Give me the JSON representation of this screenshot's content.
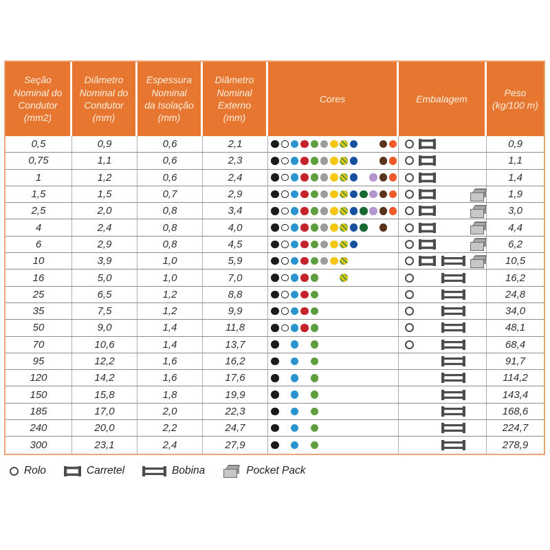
{
  "columns": [
    {
      "id": "secao",
      "label": "Seção\nNominal do\nCondutor\n(mm2)"
    },
    {
      "id": "diam_condutor",
      "label": "Diâmetro\nNominal do\nCondutor\n(mm)"
    },
    {
      "id": "espessura",
      "label": "Espessura\nNominal\nda Isolação\n(mm)"
    },
    {
      "id": "diam_externo",
      "label": "Diâmetro\nNominal\nExterno\n(mm)"
    },
    {
      "id": "cores",
      "label": "Cores"
    },
    {
      "id": "embalagem",
      "label": "Embalagem"
    },
    {
      "id": "peso",
      "label": "Peso\n(kg/100 m)"
    }
  ],
  "palette": [
    {
      "name": "preto",
      "hex": "#1B1B1B",
      "style": "solid"
    },
    {
      "name": "branco",
      "hex": "#FFFFFF",
      "style": "outline"
    },
    {
      "name": "azul-claro",
      "hex": "#2B93CE",
      "style": "solid"
    },
    {
      "name": "vermelho",
      "hex": "#C4232B",
      "style": "solid"
    },
    {
      "name": "verde",
      "hex": "#5E9E3E",
      "style": "solid"
    },
    {
      "name": "cinza",
      "hex": "#9C9C9C",
      "style": "solid"
    },
    {
      "name": "amarelo",
      "hex": "#F5C713",
      "style": "solid"
    },
    {
      "name": "verde-amarelo",
      "hex": "#5E9E3E/#F5C713",
      "style": "striped"
    },
    {
      "name": "azul-escuro",
      "hex": "#16509F",
      "style": "solid"
    },
    {
      "name": "verde-escuro",
      "hex": "#186A34",
      "style": "solid"
    },
    {
      "name": "violeta",
      "hex": "#B495D0",
      "style": "solid"
    },
    {
      "name": "marrom",
      "hex": "#59331B",
      "style": "solid"
    },
    {
      "name": "laranja",
      "hex": "#F05A28",
      "style": "solid"
    }
  ],
  "rows": [
    {
      "secao": "0,5",
      "diam_condutor": "0,9",
      "espessura": "0,6",
      "diam_externo": "2,1",
      "cores": [
        1,
        2,
        3,
        4,
        5,
        6,
        7,
        8,
        9,
        12,
        13
      ],
      "embalagem": [
        "rolo",
        "carretel"
      ],
      "peso": "0,9"
    },
    {
      "secao": "0,75",
      "diam_condutor": "1,1",
      "espessura": "0,6",
      "diam_externo": "2,3",
      "cores": [
        1,
        2,
        3,
        4,
        5,
        6,
        7,
        8,
        9,
        12,
        13
      ],
      "embalagem": [
        "rolo",
        "carretel"
      ],
      "peso": "1,1"
    },
    {
      "secao": "1",
      "diam_condutor": "1,2",
      "espessura": "0,6",
      "diam_externo": "2,4",
      "cores": [
        1,
        2,
        3,
        4,
        5,
        6,
        7,
        8,
        9,
        11,
        12,
        13
      ],
      "embalagem": [
        "rolo",
        "carretel"
      ],
      "peso": "1,4"
    },
    {
      "secao": "1,5",
      "diam_condutor": "1,5",
      "espessura": "0,7",
      "diam_externo": "2,9",
      "cores": [
        1,
        2,
        3,
        4,
        5,
        6,
        7,
        8,
        9,
        10,
        11,
        12,
        13
      ],
      "embalagem": [
        "rolo",
        "carretel",
        "pocket"
      ],
      "peso": "1,9"
    },
    {
      "secao": "2,5",
      "diam_condutor": "2,0",
      "espessura": "0,8",
      "diam_externo": "3,4",
      "cores": [
        1,
        2,
        3,
        4,
        5,
        6,
        7,
        8,
        9,
        10,
        11,
        12,
        13
      ],
      "embalagem": [
        "rolo",
        "carretel",
        "pocket"
      ],
      "peso": "3,0"
    },
    {
      "secao": "4",
      "diam_condutor": "2,4",
      "espessura": "0,8",
      "diam_externo": "4,0",
      "cores": [
        1,
        2,
        3,
        4,
        5,
        6,
        7,
        8,
        9,
        10,
        12
      ],
      "embalagem": [
        "rolo",
        "carretel",
        "pocket"
      ],
      "peso": "4,4"
    },
    {
      "secao": "6",
      "diam_condutor": "2,9",
      "espessura": "0,8",
      "diam_externo": "4,5",
      "cores": [
        1,
        2,
        3,
        4,
        5,
        6,
        7,
        8,
        9
      ],
      "embalagem": [
        "rolo",
        "carretel",
        "pocket"
      ],
      "peso": "6,2"
    },
    {
      "secao": "10",
      "diam_condutor": "3,9",
      "espessura": "1,0",
      "diam_externo": "5,9",
      "cores": [
        1,
        2,
        3,
        4,
        5,
        6,
        7,
        8
      ],
      "embalagem": [
        "rolo",
        "carretel",
        "bobina",
        "pocket"
      ],
      "peso": "10,5"
    },
    {
      "secao": "16",
      "diam_condutor": "5,0",
      "espessura": "1,0",
      "diam_externo": "7,0",
      "cores": [
        1,
        2,
        3,
        4,
        5,
        8
      ],
      "embalagem": [
        "rolo",
        "bobina"
      ],
      "peso": "16,2"
    },
    {
      "secao": "25",
      "diam_condutor": "6,5",
      "espessura": "1,2",
      "diam_externo": "8,8",
      "cores": [
        1,
        2,
        3,
        4,
        5
      ],
      "embalagem": [
        "rolo",
        "bobina"
      ],
      "peso": "24,8"
    },
    {
      "secao": "35",
      "diam_condutor": "7,5",
      "espessura": "1,2",
      "diam_externo": "9,9",
      "cores": [
        1,
        2,
        3,
        4,
        5
      ],
      "embalagem": [
        "rolo",
        "bobina"
      ],
      "peso": "34,0"
    },
    {
      "secao": "50",
      "diam_condutor": "9,0",
      "espessura": "1,4",
      "diam_externo": "11,8",
      "cores": [
        1,
        2,
        3,
        4,
        5
      ],
      "embalagem": [
        "rolo",
        "bobina"
      ],
      "peso": "48,1"
    },
    {
      "secao": "70",
      "diam_condutor": "10,6",
      "espessura": "1,4",
      "diam_externo": "13,7",
      "cores": [
        1,
        3,
        5
      ],
      "embalagem": [
        "rolo",
        "bobina"
      ],
      "peso": "68,4"
    },
    {
      "secao": "95",
      "diam_condutor": "12,2",
      "espessura": "1,6",
      "diam_externo": "16,2",
      "cores": [
        1,
        3,
        5
      ],
      "embalagem": [
        "bobina"
      ],
      "peso": "91,7"
    },
    {
      "secao": "120",
      "diam_condutor": "14,2",
      "espessura": "1,6",
      "diam_externo": "17,6",
      "cores": [
        1,
        3,
        5
      ],
      "embalagem": [
        "bobina"
      ],
      "peso": "114,2"
    },
    {
      "secao": "150",
      "diam_condutor": "15,8",
      "espessura": "1,8",
      "diam_externo": "19,9",
      "cores": [
        1,
        3,
        5
      ],
      "embalagem": [
        "bobina"
      ],
      "peso": "143,4"
    },
    {
      "secao": "185",
      "diam_condutor": "17,0",
      "espessura": "2,0",
      "diam_externo": "22,3",
      "cores": [
        1,
        3,
        5
      ],
      "embalagem": [
        "bobina"
      ],
      "peso": "168,6"
    },
    {
      "secao": "240",
      "diam_condutor": "20,0",
      "espessura": "2,2",
      "diam_externo": "24,7",
      "cores": [
        1,
        3,
        5
      ],
      "embalagem": [
        "bobina"
      ],
      "peso": "224,7"
    },
    {
      "secao": "300",
      "diam_condutor": "23,1",
      "espessura": "2,4",
      "diam_externo": "27,9",
      "cores": [
        1,
        3,
        5
      ],
      "embalagem": [
        "bobina"
      ],
      "peso": "278,9"
    }
  ],
  "legend": [
    {
      "icon": "rolo",
      "label": "Rolo"
    },
    {
      "icon": "carretel",
      "label": "Carretel"
    },
    {
      "icon": "bobina",
      "label": "Bobina"
    },
    {
      "icon": "pocket",
      "label": "Pocket Pack"
    }
  ],
  "theme": {
    "header_bg": "#E77730",
    "header_text": "#FBEFDD",
    "outer_border": "#ECA273",
    "grid_line": "#8C8C8C",
    "icon_gray": "#4D4D4D"
  }
}
